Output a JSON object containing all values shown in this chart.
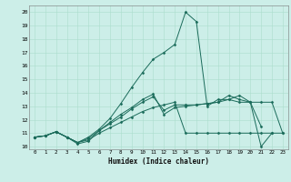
{
  "xlabel": "Humidex (Indice chaleur)",
  "bg_color": "#cceee8",
  "line_color": "#1a6b5a",
  "grid_color": "#aaddcc",
  "xlim": [
    -0.5,
    23.5
  ],
  "ylim": [
    9.8,
    20.5
  ],
  "xticks": [
    0,
    1,
    2,
    3,
    4,
    5,
    6,
    7,
    8,
    9,
    10,
    11,
    12,
    13,
    14,
    15,
    16,
    17,
    18,
    19,
    20,
    21,
    22,
    23
  ],
  "yticks": [
    10,
    11,
    12,
    13,
    14,
    15,
    16,
    17,
    18,
    19,
    20
  ],
  "lines": [
    {
      "x": [
        0,
        1,
        2,
        3,
        4,
        5,
        6,
        7,
        8,
        9,
        10,
        11,
        12,
        13,
        14,
        15,
        16,
        17,
        18,
        19,
        20,
        21,
        22,
        23
      ],
      "y": [
        10.7,
        10.8,
        11.1,
        10.7,
        10.3,
        10.5,
        11.0,
        11.4,
        11.8,
        12.2,
        12.6,
        12.9,
        13.1,
        13.3,
        11.0,
        11.0,
        11.0,
        11.0,
        11.0,
        11.0,
        11.0,
        11.0,
        11.0,
        11.0
      ]
    },
    {
      "x": [
        0,
        1,
        2,
        3,
        4,
        5,
        6,
        7,
        8,
        9,
        10,
        11,
        12,
        13,
        14,
        15,
        16,
        17,
        18,
        19,
        20,
        21,
        22,
        23
      ],
      "y": [
        10.7,
        10.8,
        11.1,
        10.7,
        10.3,
        10.6,
        11.2,
        11.7,
        12.2,
        12.8,
        13.3,
        13.7,
        12.7,
        13.1,
        13.1,
        13.1,
        13.2,
        13.3,
        13.5,
        13.3,
        13.3,
        13.3,
        13.3,
        11.0
      ]
    },
    {
      "x": [
        0,
        1,
        2,
        3,
        4,
        5,
        6,
        7,
        8,
        9,
        10,
        11,
        12,
        13,
        14,
        15,
        16,
        17,
        18,
        19,
        20,
        21,
        22
      ],
      "y": [
        10.7,
        10.8,
        11.1,
        10.7,
        10.2,
        10.4,
        11.2,
        11.8,
        12.4,
        12.9,
        13.5,
        13.9,
        12.4,
        12.9,
        13.0,
        13.1,
        13.2,
        13.3,
        13.8,
        13.5,
        13.3,
        10.0,
        11.0
      ]
    },
    {
      "x": [
        0,
        1,
        2,
        3,
        4,
        5,
        6,
        7,
        8,
        9,
        10,
        11,
        12,
        13,
        14,
        15,
        16,
        17,
        18,
        19,
        20,
        21
      ],
      "y": [
        10.7,
        10.8,
        11.1,
        10.7,
        10.3,
        10.7,
        11.3,
        12.1,
        13.2,
        14.4,
        15.5,
        16.5,
        17.0,
        17.6,
        20.0,
        19.3,
        13.0,
        13.5,
        13.5,
        13.8,
        13.3,
        11.5
      ]
    }
  ]
}
